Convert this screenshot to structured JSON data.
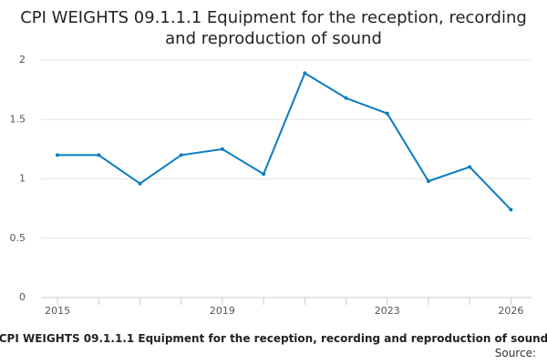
{
  "chart_data": {
    "type": "line",
    "title": "CPI WEIGHTS 09.1.1.1 Equipment for the reception, recording and reproduction of sound",
    "caption": "CPI WEIGHTS 09.1.1.1 Equipment for the reception, recording and reproduction of sound",
    "source": "Source:",
    "x": [
      2015,
      2016,
      2017,
      2018,
      2019,
      2020,
      2021,
      2022,
      2023,
      2024,
      2025,
      2026
    ],
    "values": [
      1.2,
      1.2,
      0.96,
      1.2,
      1.25,
      1.04,
      1.89,
      1.68,
      1.55,
      0.98,
      1.1,
      0.74
    ],
    "color": "#0a7cc0",
    "xlim": [
      2014.6,
      2026.5
    ],
    "xticks": [
      2015,
      2019,
      2023,
      2026
    ],
    "xminorticks": [
      2016,
      2017,
      2018,
      2020,
      2021,
      2022,
      2024,
      2025
    ],
    "ylim": [
      0,
      2
    ],
    "yticks": [
      0,
      0.5,
      1,
      1.5,
      2
    ],
    "grid": true
  }
}
